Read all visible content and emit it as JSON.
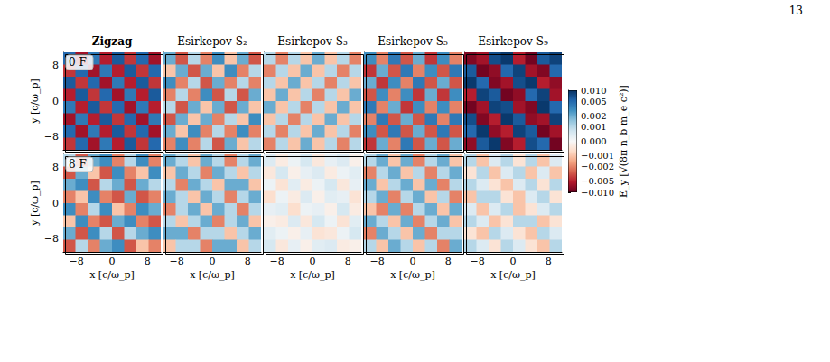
{
  "page_number": "13",
  "colorbar": {
    "label": "E_y [√(8π n_b m_e c²)]",
    "lim": [
      -0.01,
      0.01
    ],
    "ticks": [
      {
        "value": -0.01,
        "label": "−0.010"
      },
      {
        "value": -0.005,
        "label": "−0.005"
      },
      {
        "value": -0.002,
        "label": "−0.002"
      },
      {
        "value": -0.001,
        "label": "−0.001"
      },
      {
        "value": 0,
        "label": "0.000"
      },
      {
        "value": 0.001,
        "label": "0.001"
      },
      {
        "value": 0.002,
        "label": "0.002"
      },
      {
        "value": 0.005,
        "label": "0.005"
      },
      {
        "value": 0.01,
        "label": "0.010"
      }
    ]
  },
  "chart_data": [
    {
      "type": "heatmap",
      "title": "Zigzag",
      "annotation": "0 F",
      "ylabel": "y [c/ω_p]",
      "tick_labels": "y",
      "xlim": [
        -11,
        11
      ],
      "ylim": [
        -11,
        11
      ],
      "xticks": [
        {
          "value": -8,
          "label": "−8"
        },
        0,
        8
      ],
      "yticks": [
        {
          "value": -8,
          "label": "−8"
        },
        0,
        8
      ],
      "cells": [
        [
          0.005,
          -0.006,
          0.004,
          -0.005,
          0.006,
          -0.004,
          0.005,
          -0.006
        ],
        [
          -0.004,
          0.005,
          -0.006,
          0.004,
          -0.005,
          0.006,
          -0.004,
          0.005
        ],
        [
          0.006,
          -0.004,
          0.005,
          -0.006,
          0.004,
          -0.005,
          0.006,
          -0.004
        ],
        [
          -0.005,
          0.006,
          -0.004,
          0.005,
          -0.006,
          0.004,
          -0.005,
          0.006
        ],
        [
          0.004,
          -0.005,
          0.006,
          -0.004,
          0.005,
          -0.006,
          0.004,
          -0.005
        ],
        [
          -0.006,
          0.004,
          -0.005,
          0.006,
          -0.004,
          0.005,
          -0.006,
          0.004
        ],
        [
          0.005,
          -0.006,
          0.004,
          -0.005,
          0.006,
          -0.004,
          0.005,
          -0.006
        ],
        [
          -0.004,
          0.005,
          -0.006,
          0.004,
          -0.005,
          0.006,
          -0.004,
          0.005
        ]
      ]
    },
    {
      "type": "heatmap",
      "title": "Esirkepov S₂",
      "tick_labels": false,
      "xlim": [
        -11,
        11
      ],
      "ylim": [
        -11,
        11
      ],
      "xticks": [
        {
          "value": -8,
          "label": "−8"
        },
        0,
        8
      ],
      "yticks": [
        {
          "value": -8,
          "label": "−8"
        },
        0,
        8
      ],
      "cells": [
        [
          0.002,
          -0.003,
          0.001,
          -0.002,
          0.003,
          -0.001,
          0.002,
          -0.003
        ],
        [
          -0.001,
          0.002,
          -0.003,
          0.002,
          -0.001,
          0.003,
          -0.002,
          0.001
        ],
        [
          0.003,
          -0.002,
          0.001,
          -0.003,
          0.002,
          -0.002,
          0.001,
          -0.002
        ],
        [
          -0.002,
          0.001,
          -0.002,
          0.003,
          -0.003,
          0.001,
          -0.003,
          0.002
        ],
        [
          0.001,
          -0.003,
          0.002,
          -0.001,
          0.002,
          -0.003,
          0.002,
          -0.001
        ],
        [
          -0.003,
          0.002,
          -0.001,
          0.002,
          -0.002,
          0.001,
          -0.001,
          0.003
        ],
        [
          0.002,
          -0.001,
          0.003,
          -0.002,
          0.001,
          -0.002,
          0.003,
          -0.002
        ],
        [
          -0.002,
          0.003,
          -0.002,
          0.001,
          -0.003,
          0.002,
          -0.001,
          0.001
        ]
      ]
    },
    {
      "type": "heatmap",
      "title": "Esirkepov S₃",
      "tick_labels": false,
      "xlim": [
        -11,
        11
      ],
      "ylim": [
        -11,
        11
      ],
      "xticks": [
        {
          "value": -8,
          "label": "−8"
        },
        0,
        8
      ],
      "yticks": [
        {
          "value": -8,
          "label": "−8"
        },
        0,
        8
      ],
      "cells": [
        [
          0.001,
          -0.002,
          0.001,
          -0.001,
          0.002,
          -0.001,
          0.001,
          -0.002
        ],
        [
          -0.002,
          0.001,
          -0.001,
          0.002,
          -0.001,
          0.001,
          -0.002,
          0.001
        ],
        [
          0.001,
          -0.001,
          0.002,
          -0.001,
          0.001,
          -0.002,
          0.001,
          -0.001
        ],
        [
          -0.001,
          0.002,
          -0.001,
          0.001,
          -0.002,
          0.001,
          -0.001,
          0.002
        ],
        [
          0.002,
          -0.001,
          0.001,
          -0.002,
          0.001,
          -0.001,
          0.002,
          -0.001
        ],
        [
          -0.001,
          0.001,
          -0.002,
          0.001,
          -0.001,
          0.002,
          -0.001,
          0.001
        ],
        [
          0.001,
          -0.002,
          0.001,
          -0.001,
          0.002,
          -0.001,
          0.001,
          -0.002
        ],
        [
          -0.002,
          0.001,
          -0.001,
          0.002,
          -0.001,
          0.001,
          -0.002,
          0.001
        ]
      ]
    },
    {
      "type": "heatmap",
      "title": "Esirkepov S₅",
      "tick_labels": false,
      "xlim": [
        -11,
        11
      ],
      "ylim": [
        -11,
        11
      ],
      "xticks": [
        {
          "value": -8,
          "label": "−8"
        },
        0,
        8
      ],
      "yticks": [
        {
          "value": -8,
          "label": "−8"
        },
        0,
        8
      ],
      "cells": [
        [
          0.003,
          -0.002,
          0.004,
          -0.003,
          0.002,
          -0.004,
          0.003,
          -0.002
        ],
        [
          -0.004,
          0.002,
          -0.003,
          0.004,
          -0.002,
          0.003,
          -0.003,
          0.004
        ],
        [
          0.002,
          -0.004,
          0.003,
          -0.002,
          0.004,
          -0.003,
          0.002,
          -0.003
        ],
        [
          -0.003,
          0.003,
          -0.002,
          0.003,
          -0.004,
          0.002,
          -0.004,
          0.003
        ],
        [
          0.004,
          -0.002,
          0.002,
          -0.004,
          0.003,
          -0.002,
          0.003,
          -0.002
        ],
        [
          -0.002,
          0.004,
          -0.003,
          0.002,
          -0.003,
          0.004,
          -0.002,
          0.004
        ],
        [
          0.003,
          -0.003,
          0.004,
          -0.003,
          0.002,
          -0.003,
          0.004,
          -0.003
        ],
        [
          -0.004,
          0.002,
          -0.002,
          0.004,
          -0.003,
          0.002,
          -0.003,
          0.002
        ]
      ]
    },
    {
      "type": "heatmap",
      "title": "Esirkepov S₉",
      "tick_labels": false,
      "xlim": [
        -11,
        11
      ],
      "ylim": [
        -11,
        11
      ],
      "xticks": [
        {
          "value": -8,
          "label": "−8"
        },
        0,
        8
      ],
      "yticks": [
        {
          "value": -8,
          "label": "−8"
        },
        0,
        8
      ],
      "cells": [
        [
          -0.008,
          -0.006,
          0.007,
          0.009,
          -0.005,
          -0.009,
          0.006,
          0.008
        ],
        [
          0.006,
          -0.009,
          -0.007,
          0.005,
          0.008,
          -0.006,
          -0.008,
          0.005
        ],
        [
          0.009,
          0.005,
          -0.008,
          -0.006,
          0.007,
          0.009,
          -0.005,
          -0.007
        ],
        [
          -0.005,
          0.008,
          0.006,
          -0.009,
          -0.007,
          0.005,
          0.008,
          -0.006
        ],
        [
          -0.009,
          -0.006,
          0.008,
          0.007,
          -0.006,
          -0.008,
          0.009,
          0.005
        ],
        [
          0.007,
          -0.008,
          -0.005,
          0.009,
          0.006,
          -0.007,
          -0.006,
          0.008
        ],
        [
          0.005,
          0.009,
          -0.007,
          -0.005,
          0.008,
          0.006,
          -0.009,
          -0.006
        ],
        [
          -0.007,
          0.006,
          0.009,
          -0.008,
          -0.005,
          0.007,
          0.005,
          -0.009
        ]
      ]
    },
    {
      "type": "heatmap",
      "annotation": "8 F",
      "xlabel": "x [c/ω_p]",
      "ylabel": "y [c/ω_p]",
      "tick_labels": true,
      "xlim": [
        -11,
        11
      ],
      "ylim": [
        -11,
        11
      ],
      "xticks": [
        {
          "value": -8,
          "label": "−8"
        },
        0,
        8
      ],
      "yticks": [
        {
          "value": -8,
          "label": "−8"
        },
        0,
        8
      ],
      "cells": [
        [
          0.001,
          -0.003,
          0.002,
          0.003,
          -0.002,
          0.001,
          0.003,
          -0.002
        ],
        [
          -0.003,
          0.002,
          -0.001,
          -0.003,
          0.003,
          -0.002,
          -0.001,
          0.003
        ],
        [
          0.002,
          0.003,
          -0.003,
          0.001,
          0.002,
          -0.003,
          0.002,
          0.001
        ],
        [
          -0.002,
          -0.001,
          0.003,
          -0.002,
          -0.003,
          0.002,
          -0.003,
          -0.002
        ],
        [
          0.003,
          -0.002,
          0.001,
          0.003,
          -0.001,
          -0.002,
          0.003,
          0.002
        ],
        [
          -0.001,
          0.003,
          -0.002,
          -0.003,
          0.002,
          0.003,
          -0.002,
          -0.003
        ],
        [
          0.002,
          -0.003,
          0.003,
          0.001,
          -0.003,
          0.001,
          0.002,
          0.003
        ],
        [
          -0.003,
          0.001,
          -0.002,
          0.002,
          0.003,
          -0.003,
          -0.001,
          -0.002
        ]
      ]
    },
    {
      "type": "heatmap",
      "xlabel": "x [c/ω_p]",
      "tick_labels": "x",
      "xlim": [
        -11,
        11
      ],
      "ylim": [
        -11,
        11
      ],
      "xticks": [
        {
          "value": -8,
          "label": "−8"
        },
        0,
        8
      ],
      "yticks": [
        {
          "value": -8,
          "label": "−8"
        },
        0,
        8
      ],
      "cells": [
        [
          0.002,
          0.001,
          -0.001,
          0.002,
          0.001,
          -0.002,
          0.001,
          0.002
        ],
        [
          -0.001,
          0.002,
          0.001,
          -0.002,
          0.002,
          0.001,
          -0.001,
          0.001
        ],
        [
          0.001,
          -0.002,
          0.002,
          0.001,
          -0.001,
          0.002,
          0.002,
          -0.001
        ],
        [
          0.002,
          0.001,
          -0.001,
          0.002,
          0.001,
          -0.002,
          0.001,
          0.002
        ],
        [
          -0.002,
          0.001,
          0.002,
          -0.001,
          0.002,
          0.001,
          -0.002,
          0.001
        ],
        [
          0.001,
          -0.001,
          0.001,
          0.002,
          -0.002,
          0.001,
          0.002,
          -0.001
        ],
        [
          0.002,
          0.002,
          -0.002,
          0.001,
          0.001,
          -0.001,
          0.001,
          0.002
        ],
        [
          -0.001,
          0.001,
          0.001,
          -0.002,
          0.002,
          0.002,
          -0.001,
          0.001
        ]
      ]
    },
    {
      "type": "heatmap",
      "xlabel": "x [c/ω_p]",
      "tick_labels": "x",
      "xlim": [
        -11,
        11
      ],
      "ylim": [
        -11,
        11
      ],
      "xticks": [
        {
          "value": -8,
          "label": "−8"
        },
        0,
        8
      ],
      "yticks": [
        {
          "value": -8,
          "label": "−8"
        },
        0,
        8
      ],
      "cells": [
        [
          0.0005,
          -0.0003,
          0.0002,
          0.0006,
          -0.0004,
          0.0003,
          0.0005,
          -0.0002
        ],
        [
          -0.0004,
          0.0006,
          -0.0002,
          0.0003,
          0.0005,
          -0.0003,
          0.0002,
          0.0004
        ],
        [
          0.0002,
          -0.0005,
          0.0004,
          -0.0003,
          0.0002,
          0.0006,
          -0.0004,
          0.0003
        ],
        [
          -0.0006,
          0.0002,
          -0.0003,
          0.0005,
          -0.0002,
          0.0004,
          0.0003,
          -0.0005
        ],
        [
          0.0003,
          0.0004,
          -0.0006,
          0.0002,
          0.0003,
          -0.0002,
          0.0006,
          -0.0003
        ],
        [
          -0.0002,
          -0.0003,
          0.0005,
          -0.0004,
          0.0006,
          0.0002,
          -0.0005,
          0.0004
        ],
        [
          0.0004,
          0.0002,
          -0.0002,
          0.0003,
          -0.0005,
          -0.0004,
          0.0002,
          0.0006
        ],
        [
          0.0006,
          -0.0004,
          0.0003,
          -0.0002,
          0.0004,
          0.0005,
          -0.0003,
          -0.0002
        ]
      ]
    },
    {
      "type": "heatmap",
      "xlabel": "x [c/ω_p]",
      "tick_labels": "x",
      "xlim": [
        -11,
        11
      ],
      "ylim": [
        -11,
        11
      ],
      "xticks": [
        {
          "value": -8,
          "label": "−8"
        },
        0,
        8
      ],
      "yticks": [
        {
          "value": -8,
          "label": "−8"
        },
        0,
        8
      ],
      "cells": [
        [
          0.001,
          0.002,
          -0.001,
          0.002,
          -0.002,
          0.001,
          0.002,
          -0.001
        ],
        [
          -0.002,
          0.001,
          0.002,
          -0.001,
          0.001,
          -0.002,
          0.001,
          0.002
        ],
        [
          0.002,
          -0.001,
          0.001,
          0.002,
          -0.001,
          0.002,
          -0.002,
          0.001
        ],
        [
          0.001,
          0.002,
          -0.002,
          0.001,
          0.002,
          -0.001,
          0.001,
          -0.002
        ],
        [
          -0.001,
          -0.002,
          0.002,
          -0.002,
          0.001,
          0.002,
          -0.001,
          0.002
        ],
        [
          0.002,
          0.001,
          -0.001,
          0.002,
          -0.002,
          0.001,
          0.002,
          -0.001
        ],
        [
          -0.002,
          0.002,
          0.001,
          -0.001,
          0.002,
          -0.002,
          0.001,
          0.001
        ],
        [
          0.001,
          -0.001,
          0.002,
          0.001,
          -0.001,
          0.001,
          -0.002,
          0.002
        ]
      ]
    },
    {
      "type": "heatmap",
      "xlabel": "x [c/ω_p]",
      "tick_labels": "x",
      "xlim": [
        -11,
        11
      ],
      "ylim": [
        -11,
        11
      ],
      "xticks": [
        {
          "value": -8,
          "label": "−8"
        },
        0,
        8
      ],
      "yticks": [
        {
          "value": -8,
          "label": "−8"
        },
        0,
        8
      ],
      "cells": [
        [
          0.001,
          -0.001,
          0.0005,
          0.001,
          -0.0005,
          0.001,
          -0.001,
          0.0005
        ],
        [
          -0.0005,
          0.001,
          -0.001,
          0.0005,
          0.001,
          -0.001,
          0.0005,
          -0.001
        ],
        [
          0.001,
          0.0005,
          -0.0005,
          -0.001,
          0.0005,
          0.001,
          -0.0005,
          0.001
        ],
        [
          -0.001,
          0.001,
          0.001,
          -0.0005,
          -0.001,
          0.0005,
          0.001,
          -0.0005
        ],
        [
          0.0005,
          -0.001,
          0.0005,
          0.001,
          -0.001,
          -0.0005,
          0.0005,
          0.001
        ],
        [
          0.001,
          0.0005,
          -0.001,
          -0.0005,
          0.001,
          0.001,
          -0.001,
          -0.0005
        ],
        [
          -0.0005,
          -0.001,
          0.001,
          0.0005,
          -0.0005,
          -0.001,
          0.001,
          0.0005
        ],
        [
          0.001,
          0.0005,
          -0.0005,
          0.001,
          0.0005,
          -0.0005,
          -0.001,
          0.001
        ]
      ]
    }
  ]
}
